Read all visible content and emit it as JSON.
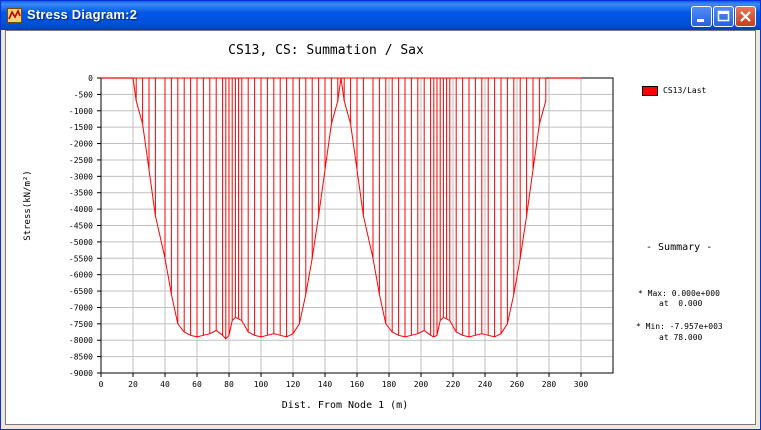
{
  "window": {
    "title": "Stress Diagram:2"
  },
  "icons": {
    "app": "stress-diagram-app-icon",
    "minimize": "minimize-icon",
    "maximize": "maximize-icon",
    "close": "close-icon"
  },
  "colors": {
    "series": "#ff0000",
    "grid": "#c0c0c0"
  },
  "chart_data": {
    "type": "bar",
    "title": "CS13, CS: Summation / Sax",
    "xlabel": "Dist. From Node 1 (m)",
    "ylabel": "Stress(kN/m²)",
    "xlim": [
      0,
      320
    ],
    "ylim": [
      -9000,
      0
    ],
    "xticks": [
      0,
      20,
      40,
      60,
      80,
      100,
      120,
      140,
      160,
      180,
      200,
      220,
      240,
      260,
      280,
      300
    ],
    "yticks": [
      0,
      -500,
      -1000,
      -1500,
      -2000,
      -2500,
      -3000,
      -3500,
      -4000,
      -4500,
      -5000,
      -5500,
      -6000,
      -6500,
      -7000,
      -7500,
      -8000,
      -8500,
      -9000
    ],
    "grid": true,
    "legend_position": "right",
    "series": [
      {
        "name": "CS13/Last",
        "x": [
          20,
          22,
          26,
          30,
          34,
          40,
          44,
          48,
          52,
          56,
          60,
          64,
          68,
          72,
          76,
          78,
          80,
          82,
          84,
          86,
          88,
          92,
          96,
          100,
          104,
          108,
          112,
          116,
          120,
          124,
          128,
          132,
          136,
          140,
          144,
          148,
          150,
          152,
          156,
          160,
          164,
          170,
          174,
          178,
          182,
          186,
          190,
          194,
          198,
          202,
          206,
          208,
          210,
          212,
          214,
          216,
          218,
          222,
          226,
          230,
          234,
          238,
          242,
          246,
          250,
          254,
          258,
          262,
          266,
          270,
          274,
          278
        ],
        "values": [
          0,
          -700,
          -1400,
          -2800,
          -4200,
          -5500,
          -6600,
          -7500,
          -7750,
          -7850,
          -7900,
          -7850,
          -7800,
          -7700,
          -7850,
          -7957,
          -7850,
          -7400,
          -7300,
          -7350,
          -7400,
          -7750,
          -7850,
          -7900,
          -7850,
          -7800,
          -7850,
          -7900,
          -7800,
          -7500,
          -6600,
          -5500,
          -4200,
          -2800,
          -1400,
          -700,
          0,
          -700,
          -1400,
          -2800,
          -4200,
          -5500,
          -6600,
          -7500,
          -7750,
          -7850,
          -7900,
          -7850,
          -7800,
          -7700,
          -7850,
          -7900,
          -7850,
          -7400,
          -7300,
          -7350,
          -7400,
          -7750,
          -7850,
          -7900,
          -7850,
          -7800,
          -7850,
          -7900,
          -7800,
          -7500,
          -6600,
          -5500,
          -4200,
          -2800,
          -1400,
          -700
        ]
      }
    ]
  },
  "legend": {
    "label": "CS13/Last"
  },
  "summary": {
    "title": "- Summary -",
    "max_line": "* Max: 0.000e+000",
    "max_at": "at  0.000",
    "min_line": "* Min: -7.957e+003",
    "min_at": "at 78.000"
  }
}
